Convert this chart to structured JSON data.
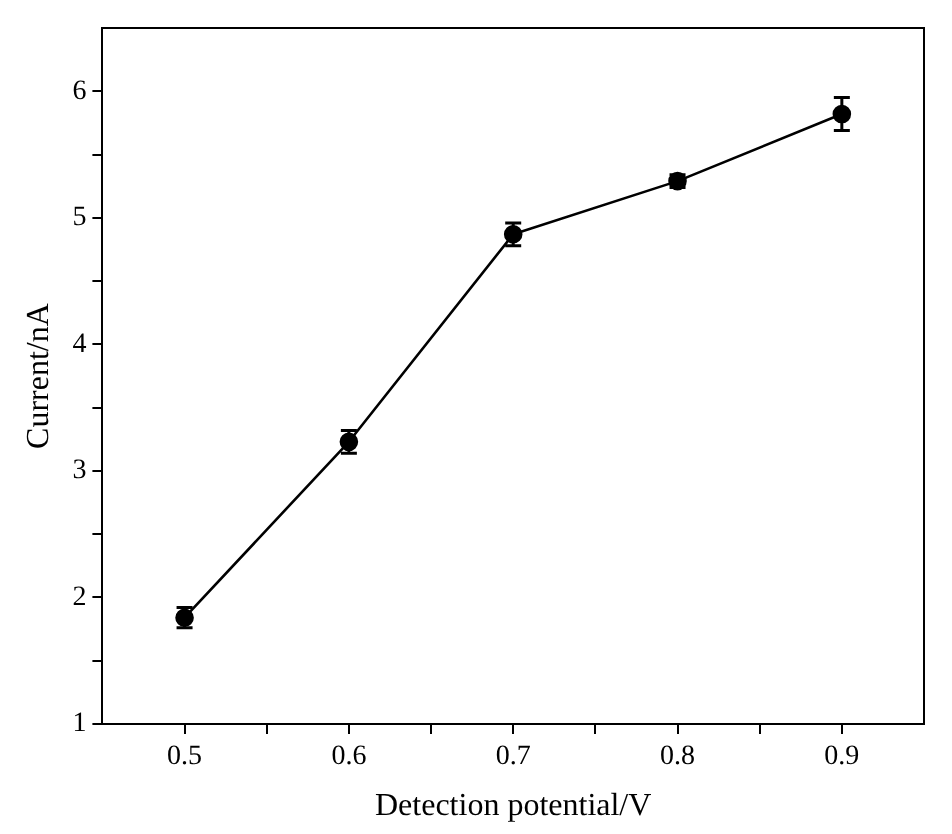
{
  "chart_data": {
    "type": "line",
    "xlabel": "Detection potential/V",
    "ylabel": "Current/nA",
    "x": [
      0.5,
      0.6,
      0.7,
      0.8,
      0.9
    ],
    "series": [
      {
        "color": "#000000",
        "values": [
          1.84,
          3.23,
          4.87,
          5.29,
          5.82
        ],
        "errors": [
          0.08,
          0.09,
          0.09,
          0.05,
          0.13
        ]
      }
    ],
    "xlim": [
      0.45,
      0.95
    ],
    "xticks": [
      0.5,
      {
        "value": 0.55,
        "label": null
      },
      0.6,
      {
        "value": 0.65,
        "label": null
      },
      0.7,
      {
        "value": 0.75,
        "label": null
      },
      0.8,
      {
        "value": 0.85,
        "label": null
      },
      0.9
    ],
    "ylim": [
      1,
      6.5
    ],
    "yticks": [
      1,
      {
        "value": 1.5,
        "label": null
      },
      2,
      {
        "value": 2.5,
        "label": null
      },
      3,
      {
        "value": 3.5,
        "label": null
      },
      4,
      {
        "value": 4.5,
        "label": null
      },
      5,
      {
        "value": 5.5,
        "label": null
      },
      6
    ],
    "grid": false,
    "legend": false,
    "marker": "circle",
    "line_style": "solid"
  }
}
